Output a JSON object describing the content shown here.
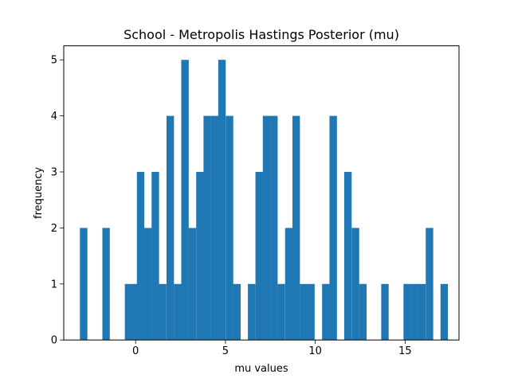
{
  "chart_data": {
    "type": "bar",
    "title": "School - Metropolis Hastings Posterior (mu)",
    "xlabel": "mu values",
    "ylabel": "frequency",
    "xlim": [
      -4.0,
      18.0
    ],
    "ylim": [
      0,
      5.25
    ],
    "xticks": [
      0,
      5,
      10,
      15
    ],
    "yticks": [
      0,
      1,
      2,
      3,
      4,
      5
    ],
    "bar_color": "#1f77b4",
    "bin_width": 0.415,
    "bins": [
      {
        "x": -3.1,
        "value": 2
      },
      {
        "x": -1.85,
        "value": 2
      },
      {
        "x": -0.6,
        "value": 1
      },
      {
        "x": -0.19,
        "value": 1
      },
      {
        "x": 0.07,
        "value": 3
      },
      {
        "x": 0.48,
        "value": 2
      },
      {
        "x": 0.89,
        "value": 3
      },
      {
        "x": 1.3,
        "value": 1
      },
      {
        "x": 1.72,
        "value": 4
      },
      {
        "x": 2.13,
        "value": 1
      },
      {
        "x": 2.54,
        "value": 5
      },
      {
        "x": 2.95,
        "value": 2
      },
      {
        "x": 3.37,
        "value": 3
      },
      {
        "x": 3.78,
        "value": 4
      },
      {
        "x": 4.19,
        "value": 4
      },
      {
        "x": 4.6,
        "value": 5
      },
      {
        "x": 5.02,
        "value": 4
      },
      {
        "x": 5.43,
        "value": 1
      },
      {
        "x": 6.25,
        "value": 1
      },
      {
        "x": 6.67,
        "value": 3
      },
      {
        "x": 7.08,
        "value": 4
      },
      {
        "x": 7.49,
        "value": 4
      },
      {
        "x": 7.9,
        "value": 1
      },
      {
        "x": 8.32,
        "value": 2
      },
      {
        "x": 8.73,
        "value": 4
      },
      {
        "x": 9.14,
        "value": 1
      },
      {
        "x": 9.55,
        "value": 1
      },
      {
        "x": 10.38,
        "value": 1
      },
      {
        "x": 10.79,
        "value": 4
      },
      {
        "x": 11.61,
        "value": 3
      },
      {
        "x": 12.03,
        "value": 2
      },
      {
        "x": 12.44,
        "value": 1
      },
      {
        "x": 13.67,
        "value": 1
      },
      {
        "x": 14.91,
        "value": 1
      },
      {
        "x": 15.32,
        "value": 1
      },
      {
        "x": 15.73,
        "value": 1
      },
      {
        "x": 16.15,
        "value": 2
      },
      {
        "x": 16.97,
        "value": 1
      }
    ]
  }
}
